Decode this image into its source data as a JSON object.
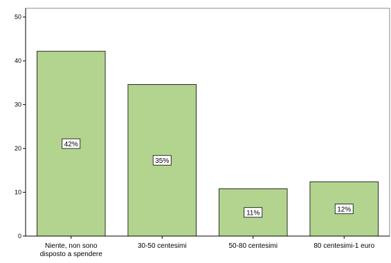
{
  "chart_data": {
    "type": "bar",
    "categories": [
      [
        "Niente, non sono",
        "disposto a spendere"
      ],
      [
        "30-50 centesimi"
      ],
      [
        "50-80 centesimi"
      ],
      [
        "80 centesimi-1 euro"
      ]
    ],
    "values": [
      42.2,
      34.6,
      10.8,
      12.4
    ],
    "data_labels": [
      "42%",
      "35%",
      "11%",
      "12%"
    ],
    "ylim": [
      0,
      52
    ],
    "yticks": [
      0,
      10,
      20,
      30,
      40,
      50
    ],
    "title": "",
    "xlabel": "",
    "ylabel": "",
    "grid": false,
    "colors": {
      "bar_fill": "#b3d48f",
      "bar_stroke": "#000000",
      "axis": "#000000",
      "label_box_fill": "#ffffff"
    }
  }
}
